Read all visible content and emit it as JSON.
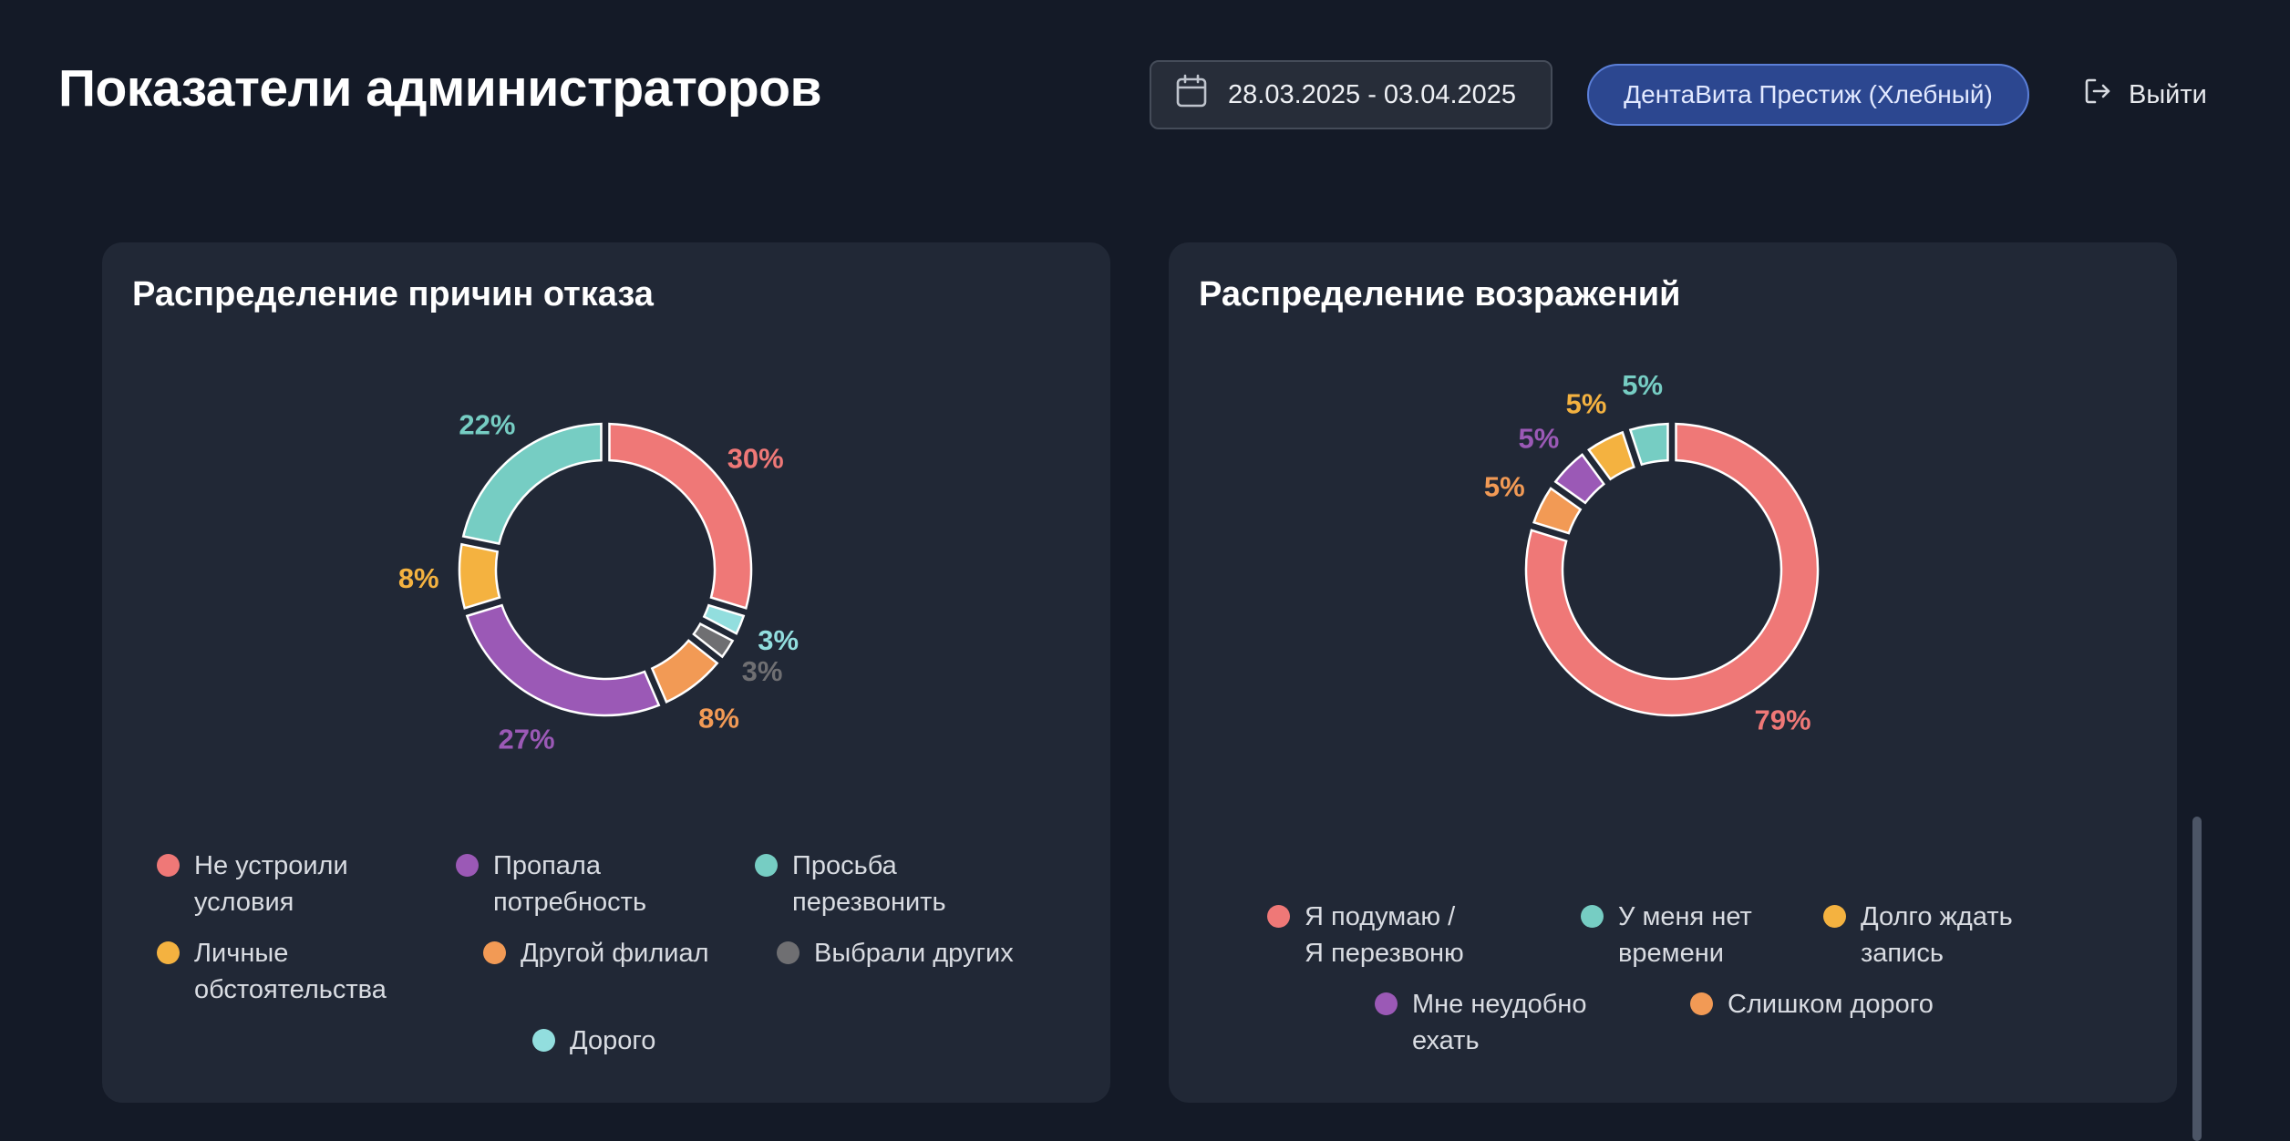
{
  "header": {
    "title": "Показатели администраторов",
    "date_range": "28.03.2025 - 03.04.2025",
    "branch": "ДентаВита Престиж (Хлебный)",
    "logout_label": "Выйти",
    "calendar_icon": "calendar-icon",
    "logout_icon": "logout-icon"
  },
  "colors": {
    "salmon": "#ef7877",
    "purple": "#9b59b6",
    "teal": "#76cdc3",
    "yellow": "#f4b240",
    "orange": "#f29a55",
    "gray": "#6f6f72",
    "light_teal": "#92dede",
    "card_bg": "#212836",
    "page_bg": "#141a27",
    "accent_blue": "#2c4790"
  },
  "cards": {
    "left": {
      "title": "Распределение причин отказа"
    },
    "right": {
      "title": "Распределение возражений"
    }
  },
  "chart_data": [
    {
      "type": "pie",
      "variant": "donut",
      "title": "Распределение причин отказа",
      "legend_position": "bottom",
      "slices": [
        {
          "label": "Не устроили\nусловия",
          "value": 30,
          "value_label": "30%",
          "color": "#ef7877"
        },
        {
          "label": "Дорого",
          "value": 3,
          "value_label": "3%",
          "color": "#92dede"
        },
        {
          "label": "Выбрали других",
          "value": 3,
          "value_label": "3%",
          "color": "#6f6f72"
        },
        {
          "label": "Другой филиал",
          "value": 8,
          "value_label": "8%",
          "color": "#f29a55"
        },
        {
          "label": "Пропала\nпотребность",
          "value": 27,
          "value_label": "27%",
          "color": "#9b59b6"
        },
        {
          "label": "Личные\nобстоятельства",
          "value": 8,
          "value_label": "8%",
          "color": "#f4b240"
        },
        {
          "label": "Просьба\nперезвонить",
          "value": 22,
          "value_label": "22%",
          "color": "#76cdc3"
        }
      ],
      "legend_order": [
        0,
        4,
        6,
        5,
        3,
        2,
        1
      ]
    },
    {
      "type": "pie",
      "variant": "donut",
      "title": "Распределение возражений",
      "legend_position": "bottom",
      "slices": [
        {
          "label": "Я подумаю /\nЯ перезвоню",
          "value": 79,
          "value_label": "79%",
          "color": "#ef7877"
        },
        {
          "label": "Слишком дорого",
          "value": 5,
          "value_label": "5%",
          "color": "#f29a55"
        },
        {
          "label": "Мне неудобно\nехать",
          "value": 5,
          "value_label": "5%",
          "color": "#9b59b6"
        },
        {
          "label": "Долго ждать\nзапись",
          "value": 5,
          "value_label": "5%",
          "color": "#f4b240"
        },
        {
          "label": "У меня нет\nвремени",
          "value": 5,
          "value_label": "5%",
          "color": "#76cdc3"
        }
      ],
      "legend_order": [
        0,
        4,
        3,
        2,
        1
      ]
    }
  ]
}
